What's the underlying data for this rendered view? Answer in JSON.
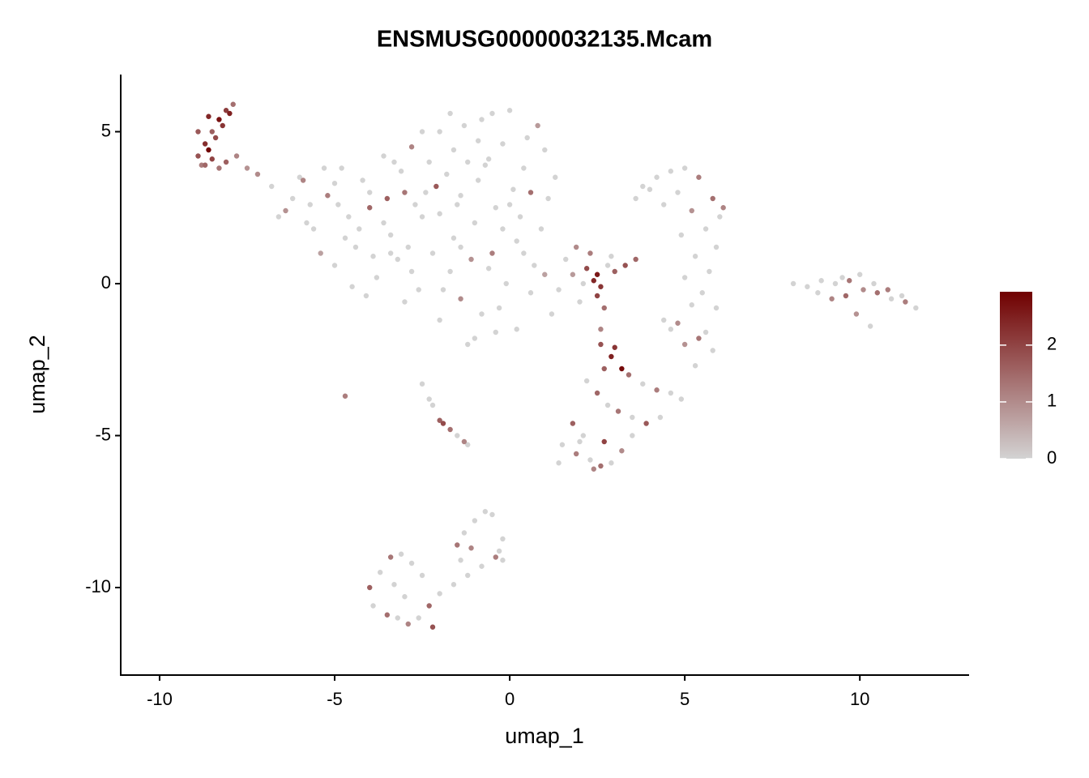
{
  "chart_data": {
    "type": "scatter",
    "title": "ENSMUSG00000032135.Mcam",
    "x_label": "umap_1",
    "y_label": "umap_2",
    "xlim": [
      -11.11,
      13.12
    ],
    "ylim": [
      -12.88,
      6.88
    ],
    "xticks": [
      -10,
      -5,
      0,
      5,
      10
    ],
    "yticks": [
      -10,
      -5,
      0,
      5
    ],
    "color_low": "#d3d3d3",
    "color_high": "#700000",
    "colorbar_lim": [
      0,
      2.94
    ],
    "colorbar_ticks": [
      0,
      1,
      2
    ],
    "x": [
      -8.9,
      -8.7,
      -8.5,
      -8.3,
      -8.1,
      -7.9,
      -8.8,
      -8.6,
      -8.4,
      -8.2,
      -8.0,
      -8.9,
      -8.7,
      -8.5,
      -8.3,
      -7.8,
      -7.5,
      -7.2,
      -8.1,
      -8.6,
      -6.8,
      -6.4,
      -6.0,
      -5.6,
      -5.2,
      -4.8,
      -4.4,
      -4.0,
      -3.6,
      -3.2,
      -2.8,
      -2.4,
      -2.0,
      -1.6,
      -1.2,
      -0.8,
      -0.4,
      0.0,
      0.4,
      0.8,
      -6.2,
      -5.8,
      -5.4,
      -5.0,
      -4.6,
      -4.2,
      -3.8,
      -3.4,
      -3.0,
      -2.6,
      -2.2,
      -1.8,
      -1.4,
      -1.0,
      -0.6,
      -0.2,
      0.2,
      0.6,
      1.0,
      1.3,
      -5.0,
      -4.5,
      -4.0,
      -3.5,
      -3.0,
      -2.5,
      -2.0,
      -1.5,
      -1.0,
      -0.5,
      -3.3,
      -2.9,
      -2.1,
      -1.7,
      -1.3,
      -0.9,
      -0.3,
      0.3,
      0.9,
      1.1,
      -4.3,
      -3.9,
      -2.7,
      -2.3,
      -1.9,
      -1.1,
      -0.7,
      -0.1,
      0.5,
      0.2,
      -6.6,
      -5.9,
      -5.3,
      -4.7,
      -4.1,
      -3.1,
      -1.6,
      -0.5,
      0.1,
      0.7,
      -2.5,
      -1.4,
      -0.8,
      -0.2,
      0.4,
      1.0,
      -2.0,
      -3.6,
      -4.9,
      -5.7,
      -1.2,
      -0.4,
      0.6,
      -2.8,
      -3.4,
      -1.7,
      -0.9,
      0.0,
      -1.4,
      -0.6,
      1.4,
      1.8,
      2.2,
      2.4,
      2.6,
      2.8,
      3.0,
      3.3,
      3.6,
      2.0,
      1.6,
      2.5,
      2.7,
      2.3,
      1.2,
      2.9,
      2.6,
      2.1,
      1.9,
      2.5,
      3.8,
      4.2,
      4.6,
      5.0,
      5.4,
      5.8,
      6.0,
      4.4,
      4.8,
      5.2,
      5.6,
      5.9,
      4.9,
      5.3,
      5.7,
      5.5,
      5.9,
      5.2,
      4.8,
      5.6,
      4.6,
      5.0,
      5.4,
      5.8,
      4.4,
      5.3,
      3.6,
      4.0,
      6.1,
      5.0,
      2.6,
      2.9,
      3.2,
      2.7,
      3.0,
      3.4,
      3.8,
      4.2,
      4.6,
      4.9,
      2.2,
      2.5,
      2.8,
      3.1,
      3.5,
      3.9,
      4.3,
      1.8,
      2.1,
      1.5,
      1.9,
      2.3,
      2.6,
      2.9,
      3.2,
      2.4,
      2.0,
      1.4,
      2.7,
      3.5,
      8.1,
      8.5,
      8.9,
      9.3,
      9.7,
      10.1,
      10.5,
      10.9,
      11.3,
      11.6,
      8.8,
      9.2,
      9.6,
      10.0,
      10.4,
      10.8,
      11.2,
      10.3,
      9.9,
      9.5,
      -2.5,
      -2.2,
      -2.0,
      -1.9,
      -1.7,
      -1.5,
      -1.3,
      -1.2,
      -2.3,
      -4.7,
      -4.0,
      -3.7,
      -3.4,
      -3.1,
      -2.8,
      -2.5,
      -2.2,
      -3.9,
      -3.5,
      -3.2,
      -2.9,
      -2.6,
      -2.3,
      -3.0,
      -3.3,
      -2.0,
      -1.6,
      -1.2,
      -0.8,
      -0.4,
      -1.5,
      -1.3,
      -1.0,
      -0.7,
      -0.3,
      -0.2,
      -1.1,
      -0.5,
      -1.4,
      -0.2
    ],
    "y": [
      4.2,
      4.6,
      5.0,
      5.4,
      5.7,
      5.9,
      3.9,
      4.4,
      4.8,
      5.2,
      5.6,
      5.0,
      3.9,
      4.1,
      3.8,
      4.2,
      3.8,
      3.6,
      4.0,
      5.5,
      3.2,
      2.4,
      3.5,
      1.8,
      2.9,
      3.8,
      1.2,
      2.5,
      4.2,
      0.8,
      4.5,
      3.0,
      5.0,
      1.5,
      4.0,
      5.4,
      2.5,
      5.7,
      3.8,
      5.2,
      2.8,
      2.0,
      1.0,
      0.6,
      2.2,
      3.4,
      0.2,
      1.6,
      3.0,
      -0.2,
      1.0,
      3.6,
      -0.5,
      2.0,
      0.5,
      4.6,
      1.4,
      3.0,
      4.4,
      3.5,
      3.3,
      -0.1,
      3.0,
      2.8,
      -0.6,
      2.2,
      -1.2,
      2.6,
      -1.8,
      1.0,
      4.0,
      1.2,
      3.2,
      0.4,
      5.2,
      3.4,
      -0.8,
      2.2,
      1.8,
      2.8,
      1.8,
      0.9,
      2.6,
      4.0,
      -0.2,
      0.8,
      3.9,
      0.0,
      4.8,
      -1.5,
      2.2,
      3.4,
      3.8,
      1.5,
      -0.4,
      3.7,
      4.4,
      5.6,
      3.1,
      0.6,
      5.0,
      2.9,
      -1.0,
      1.8,
      1.0,
      0.3,
      2.3,
      2.0,
      2.6,
      2.6,
      -2.0,
      -1.6,
      -0.3,
      0.4,
      1.0,
      5.6,
      4.7,
      2.6,
      1.2,
      4.1,
      -0.2,
      0.3,
      0.5,
      0.1,
      -0.1,
      0.6,
      0.4,
      0.6,
      0.8,
      -0.6,
      0.8,
      0.3,
      -0.8,
      1.0,
      -1.0,
      0.9,
      -1.5,
      0.0,
      1.2,
      -0.4,
      3.2,
      3.5,
      3.7,
      3.8,
      3.5,
      2.8,
      2.2,
      2.6,
      3.0,
      2.4,
      1.8,
      1.2,
      1.6,
      0.9,
      0.4,
      -0.3,
      -0.8,
      -0.7,
      -1.3,
      -1.6,
      -1.5,
      -2.0,
      -1.8,
      -2.2,
      -1.2,
      -2.7,
      2.8,
      3.1,
      2.5,
      0.2,
      -2.0,
      -2.4,
      -2.8,
      -2.8,
      -2.1,
      -3.0,
      -3.3,
      -3.5,
      -3.6,
      -3.8,
      -3.2,
      -3.6,
      -4.0,
      -4.2,
      -4.4,
      -4.6,
      -4.4,
      -4.6,
      -5.0,
      -5.3,
      -5.6,
      -5.8,
      -6.0,
      -5.9,
      -5.5,
      -6.1,
      -5.2,
      -5.9,
      -5.2,
      -5.0,
      0.0,
      -0.1,
      0.1,
      0.0,
      0.1,
      -0.2,
      -0.3,
      -0.5,
      -0.6,
      -0.8,
      -0.3,
      -0.5,
      -0.4,
      0.3,
      0.0,
      -0.2,
      -0.4,
      -1.4,
      -1.0,
      0.2,
      -3.3,
      -4.0,
      -4.5,
      -4.6,
      -4.8,
      -5.0,
      -5.2,
      -5.3,
      -3.8,
      -3.7,
      -10.0,
      -9.5,
      -9.0,
      -8.9,
      -9.2,
      -9.6,
      -11.3,
      -10.6,
      -10.9,
      -11.0,
      -11.2,
      -11.0,
      -10.6,
      -10.3,
      -9.9,
      -10.2,
      -9.9,
      -9.6,
      -9.3,
      -9.0,
      -8.6,
      -8.2,
      -7.8,
      -7.5,
      -8.8,
      -8.4,
      -8.7,
      -7.6,
      -9.1,
      -9.1
    ],
    "values": [
      1.8,
      2.3,
      1.6,
      2.7,
      2.1,
      1.4,
      1.2,
      2.9,
      1.9,
      2.2,
      2.5,
      1.7,
      1.5,
      2.0,
      1.3,
      1.1,
      0.9,
      1.0,
      1.6,
      2.4,
      0,
      0.9,
      0,
      0,
      1.2,
      0,
      0,
      1.5,
      0,
      0,
      1.1,
      0,
      0,
      0,
      0,
      0,
      0,
      0,
      0,
      0.8,
      0,
      0,
      0.7,
      0,
      0,
      0,
      0,
      0,
      1.3,
      0,
      0,
      0,
      1.0,
      0,
      0,
      0,
      0,
      1.4,
      0,
      0,
      0,
      0,
      0,
      1.6,
      0,
      0,
      0,
      0,
      0,
      1.2,
      0,
      0,
      1.7,
      0,
      0,
      0,
      0,
      0,
      0,
      0,
      0,
      0,
      0,
      0,
      0,
      0.9,
      0,
      0,
      0,
      0,
      0,
      1.1,
      0,
      0,
      0,
      0,
      0,
      0,
      0,
      0,
      0,
      0,
      0,
      0,
      0,
      0.7,
      0,
      0,
      0,
      0,
      0,
      0,
      0,
      0,
      0,
      0,
      0,
      0,
      0,
      0,
      0,
      0.8,
      1.9,
      2.4,
      2.2,
      0,
      1.6,
      1.8,
      1.5,
      0,
      0,
      2.6,
      1.4,
      1.2,
      0,
      0,
      1.1,
      0,
      1.0,
      2.0,
      0,
      0,
      0,
      0,
      1.2,
      1.4,
      0,
      0,
      0,
      0.9,
      0,
      0,
      0,
      0,
      0,
      0,
      0,
      0,
      1.0,
      0,
      0,
      0.9,
      1.3,
      0,
      0,
      0,
      0,
      0,
      1.1,
      0,
      1.8,
      2.5,
      2.8,
      1.6,
      2.2,
      1.4,
      0,
      1.2,
      0,
      0,
      0,
      1.5,
      0,
      1.3,
      0,
      1.7,
      0,
      1.6,
      0,
      0,
      1.2,
      0,
      1.4,
      0,
      1.0,
      1.1,
      0,
      0,
      2.0,
      0,
      0,
      0,
      0,
      0,
      1.3,
      1.0,
      1.4,
      0,
      1.2,
      0,
      0,
      1.1,
      1.5,
      0,
      0,
      1.2,
      0,
      0,
      0.9,
      0,
      0,
      0,
      1.6,
      1.9,
      1.4,
      0,
      1.1,
      0,
      0,
      1.2,
      1.6,
      0,
      1.3,
      0,
      0,
      0,
      1.8,
      0,
      1.4,
      0,
      1.1,
      0,
      1.5,
      0,
      0,
      0,
      0,
      0,
      0,
      1.2,
      1.3,
      0,
      0,
      0,
      0,
      0,
      1.1,
      0,
      0,
      0
    ]
  }
}
